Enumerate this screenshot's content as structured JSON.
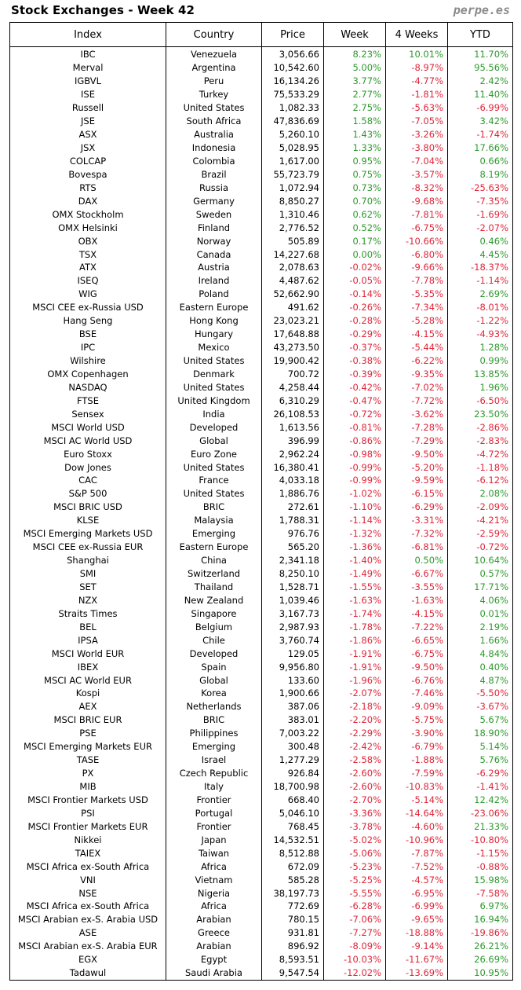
{
  "header": {
    "title": "Stock Exchanges - Week 42",
    "brand": "perpe.es"
  },
  "colors": {
    "positive": "#2e9a2e",
    "negative": "#e0263a"
  },
  "columns": [
    "Index",
    "Country",
    "Price",
    "Week",
    "4 Weeks",
    "YTD"
  ],
  "rows": [
    [
      "IBC",
      "Venezuela",
      "3,056.66",
      "8.23%",
      "10.01%",
      "11.70%"
    ],
    [
      "Merval",
      "Argentina",
      "10,542.60",
      "5.00%",
      "-8.97%",
      "95.56%"
    ],
    [
      "IGBVL",
      "Peru",
      "16,134.26",
      "3.77%",
      "-4.77%",
      "2.42%"
    ],
    [
      "ISE",
      "Turkey",
      "75,533.29",
      "2.77%",
      "-1.81%",
      "11.40%"
    ],
    [
      "Russell",
      "United States",
      "1,082.33",
      "2.75%",
      "-5.63%",
      "-6.99%"
    ],
    [
      "JSE",
      "South Africa",
      "47,836.69",
      "1.58%",
      "-7.05%",
      "3.42%"
    ],
    [
      "ASX",
      "Australia",
      "5,260.10",
      "1.43%",
      "-3.26%",
      "-1.74%"
    ],
    [
      "JSX",
      "Indonesia",
      "5,028.95",
      "1.33%",
      "-3.80%",
      "17.66%"
    ],
    [
      "COLCAP",
      "Colombia",
      "1,617.00",
      "0.95%",
      "-7.04%",
      "0.66%"
    ],
    [
      "Bovespa",
      "Brazil",
      "55,723.79",
      "0.75%",
      "-3.57%",
      "8.19%"
    ],
    [
      "RTS",
      "Russia",
      "1,072.94",
      "0.73%",
      "-8.32%",
      "-25.63%"
    ],
    [
      "DAX",
      "Germany",
      "8,850.27",
      "0.70%",
      "-9.68%",
      "-7.35%"
    ],
    [
      "OMX Stockholm",
      "Sweden",
      "1,310.46",
      "0.62%",
      "-7.81%",
      "-1.69%"
    ],
    [
      "OMX Helsinki",
      "Finland",
      "2,776.52",
      "0.52%",
      "-6.75%",
      "-2.07%"
    ],
    [
      "OBX",
      "Norway",
      "505.89",
      "0.17%",
      "-10.66%",
      "0.46%"
    ],
    [
      "TSX",
      "Canada",
      "14,227.68",
      "0.00%",
      "-6.80%",
      "4.45%"
    ],
    [
      "ATX",
      "Austria",
      "2,078.63",
      "-0.02%",
      "-9.66%",
      "-18.37%"
    ],
    [
      "ISEQ",
      "Ireland",
      "4,487.62",
      "-0.05%",
      "-7.78%",
      "-1.14%"
    ],
    [
      "WIG",
      "Poland",
      "52,662.90",
      "-0.14%",
      "-5.35%",
      "2.69%"
    ],
    [
      "MSCI CEE ex-Russia USD",
      "Eastern Europe",
      "491.62",
      "-0.26%",
      "-7.34%",
      "-8.01%"
    ],
    [
      "Hang Seng",
      "Hong Kong",
      "23,023.21",
      "-0.28%",
      "-5.28%",
      "-1.22%"
    ],
    [
      "BSE",
      "Hungary",
      "17,648.88",
      "-0.29%",
      "-4.15%",
      "-4.93%"
    ],
    [
      "IPC",
      "Mexico",
      "43,273.50",
      "-0.37%",
      "-5.44%",
      "1.28%"
    ],
    [
      "Wilshire",
      "United States",
      "19,900.42",
      "-0.38%",
      "-6.22%",
      "0.99%"
    ],
    [
      "OMX Copenhagen",
      "Denmark",
      "700.72",
      "-0.39%",
      "-9.35%",
      "13.85%"
    ],
    [
      "NASDAQ",
      "United States",
      "4,258.44",
      "-0.42%",
      "-7.02%",
      "1.96%"
    ],
    [
      "FTSE",
      "United Kingdom",
      "6,310.29",
      "-0.47%",
      "-7.72%",
      "-6.50%"
    ],
    [
      "Sensex",
      "India",
      "26,108.53",
      "-0.72%",
      "-3.62%",
      "23.50%"
    ],
    [
      "MSCI World USD",
      "Developed",
      "1,613.56",
      "-0.81%",
      "-7.28%",
      "-2.86%"
    ],
    [
      "MSCI AC World USD",
      "Global",
      "396.99",
      "-0.86%",
      "-7.29%",
      "-2.83%"
    ],
    [
      "Euro Stoxx",
      "Euro Zone",
      "2,962.24",
      "-0.98%",
      "-9.50%",
      "-4.72%"
    ],
    [
      "Dow Jones",
      "United States",
      "16,380.41",
      "-0.99%",
      "-5.20%",
      "-1.18%"
    ],
    [
      "CAC",
      "France",
      "4,033.18",
      "-0.99%",
      "-9.59%",
      "-6.12%"
    ],
    [
      "S&P 500",
      "United States",
      "1,886.76",
      "-1.02%",
      "-6.15%",
      "2.08%"
    ],
    [
      "MSCI BRIC USD",
      "BRIC",
      "272.61",
      "-1.10%",
      "-6.29%",
      "-2.09%"
    ],
    [
      "KLSE",
      "Malaysia",
      "1,788.31",
      "-1.14%",
      "-3.31%",
      "-4.21%"
    ],
    [
      "MSCI Emerging Markets USD",
      "Emerging",
      "976.76",
      "-1.32%",
      "-7.32%",
      "-2.59%"
    ],
    [
      "MSCI CEE ex-Russia EUR",
      "Eastern Europe",
      "565.20",
      "-1.36%",
      "-6.81%",
      "-0.72%"
    ],
    [
      "Shanghai",
      "China",
      "2,341.18",
      "-1.40%",
      "0.50%",
      "10.64%"
    ],
    [
      "SMI",
      "Switzerland",
      "8,250.10",
      "-1.49%",
      "-6.67%",
      "0.57%"
    ],
    [
      "SET",
      "Thailand",
      "1,528.71",
      "-1.55%",
      "-3.55%",
      "17.71%"
    ],
    [
      "NZX",
      "New Zealand",
      "1,039.46",
      "-1.63%",
      "-1.63%",
      "4.06%"
    ],
    [
      "Straits Times",
      "Singapore",
      "3,167.73",
      "-1.74%",
      "-4.15%",
      "0.01%"
    ],
    [
      "BEL",
      "Belgium",
      "2,987.93",
      "-1.78%",
      "-7.22%",
      "2.19%"
    ],
    [
      "IPSA",
      "Chile",
      "3,760.74",
      "-1.86%",
      "-6.65%",
      "1.66%"
    ],
    [
      "MSCI World EUR",
      "Developed",
      "129.05",
      "-1.91%",
      "-6.75%",
      "4.84%"
    ],
    [
      "IBEX",
      "Spain",
      "9,956.80",
      "-1.91%",
      "-9.50%",
      "0.40%"
    ],
    [
      "MSCI AC World EUR",
      "Global",
      "133.60",
      "-1.96%",
      "-6.76%",
      "4.87%"
    ],
    [
      "Kospi",
      "Korea",
      "1,900.66",
      "-2.07%",
      "-7.46%",
      "-5.50%"
    ],
    [
      "AEX",
      "Netherlands",
      "387.06",
      "-2.18%",
      "-9.09%",
      "-3.67%"
    ],
    [
      "MSCI BRIC EUR",
      "BRIC",
      "383.01",
      "-2.20%",
      "-5.75%",
      "5.67%"
    ],
    [
      "PSE",
      "Philippines",
      "7,003.22",
      "-2.29%",
      "-3.90%",
      "18.90%"
    ],
    [
      "MSCI Emerging Markets EUR",
      "Emerging",
      "300.48",
      "-2.42%",
      "-6.79%",
      "5.14%"
    ],
    [
      "TASE",
      "Israel",
      "1,277.29",
      "-2.58%",
      "-1.88%",
      "5.76%"
    ],
    [
      "PX",
      "Czech Republic",
      "926.84",
      "-2.60%",
      "-7.59%",
      "-6.29%"
    ],
    [
      "MIB",
      "Italy",
      "18,700.98",
      "-2.60%",
      "-10.83%",
      "-1.41%"
    ],
    [
      "MSCI Frontier Markets USD",
      "Frontier",
      "668.40",
      "-2.70%",
      "-5.14%",
      "12.42%"
    ],
    [
      "PSI",
      "Portugal",
      "5,046.10",
      "-3.36%",
      "-14.64%",
      "-23.06%"
    ],
    [
      "MSCI Frontier Markets EUR",
      "Frontier",
      "768.45",
      "-3.78%",
      "-4.60%",
      "21.33%"
    ],
    [
      "Nikkei",
      "Japan",
      "14,532.51",
      "-5.02%",
      "-10.96%",
      "-10.80%"
    ],
    [
      "TAIEX",
      "Taiwan",
      "8,512.88",
      "-5.06%",
      "-7.87%",
      "-1.15%"
    ],
    [
      "MSCI Africa ex-South Africa",
      "Africa",
      "672.09",
      "-5.23%",
      "-7.52%",
      "-0.88%"
    ],
    [
      "VNI",
      "Vietnam",
      "585.28",
      "-5.25%",
      "-4.57%",
      "15.98%"
    ],
    [
      "NSE",
      "Nigeria",
      "38,197.73",
      "-5.55%",
      "-6.95%",
      "-7.58%"
    ],
    [
      "MSCI Africa ex-South Africa",
      "Africa",
      "772.69",
      "-6.28%",
      "-6.99%",
      "6.97%"
    ],
    [
      "MSCI Arabian ex-S. Arabia USD",
      "Arabian",
      "780.15",
      "-7.06%",
      "-9.65%",
      "16.94%"
    ],
    [
      "ASE",
      "Greece",
      "931.81",
      "-7.27%",
      "-18.88%",
      "-19.86%"
    ],
    [
      "MSCI Arabian ex-S. Arabia EUR",
      "Arabian",
      "896.92",
      "-8.09%",
      "-9.14%",
      "26.21%"
    ],
    [
      "EGX",
      "Egypt",
      "8,593.51",
      "-10.03%",
      "-11.67%",
      "26.69%"
    ],
    [
      "Tadawul",
      "Saudi Arabia",
      "9,547.54",
      "-12.02%",
      "-13.69%",
      "10.95%"
    ]
  ]
}
